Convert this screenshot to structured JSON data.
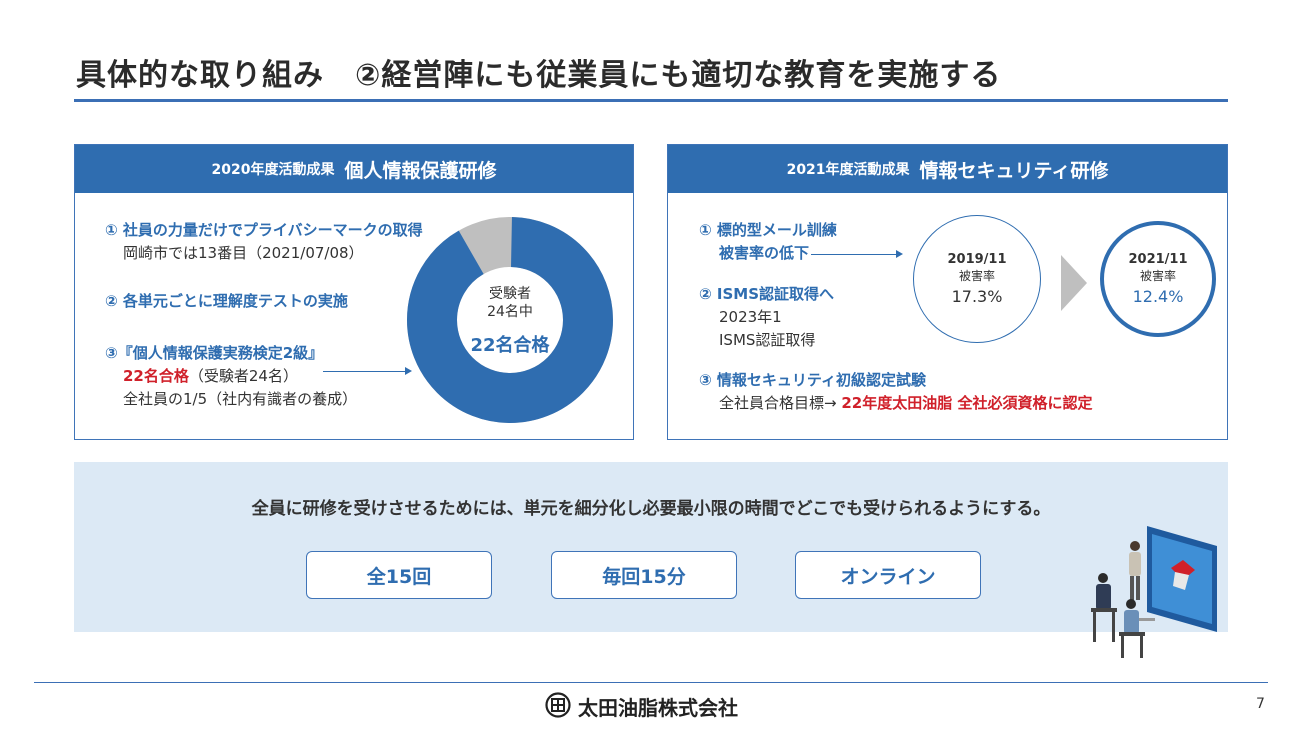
{
  "title": "具体的な取り組み　②経営陣にも従業員にも適切な教育を実施する",
  "left_panel": {
    "header_small": "2020年度活動成果",
    "header_big": "個人情報保護研修",
    "item1_title": "① 社員の力量だけでプライバシーマークの取得",
    "item1_sub": "岡崎市では13番目（2021/07/08）",
    "item2_title": "② 各単元ごとに理解度テストの実施",
    "item3_title": "③『個人情報保護実務検定2級』",
    "item3_red": "22名合格",
    "item3_red_note": "（受験者24名）",
    "item3_sub": "全社員の1/5（社内有識者の養成）",
    "donut_center_1": "受験者",
    "donut_center_2": "24名中",
    "donut_center_3": "22名合格"
  },
  "right_panel": {
    "header_small": "2021年度活動成果",
    "header_big": "情報セキュリティ研修",
    "item1_title": "① 標的型メール訓練",
    "item1_sub": "被害率の低下",
    "item2_title": "② ISMS認証取得へ",
    "item2_sub1": "2023年1",
    "item2_sub2": "ISMS認証取得",
    "item3_title": "③ 情報セキュリティ初級認定試験",
    "item3_sub": "全社員合格目標→",
    "item3_red": "22年度太田油脂 全社必須資格に認定",
    "circle1_date": "2019/11",
    "circle1_label": "被害率",
    "circle1_value": "17.3%",
    "circle2_date": "2021/11",
    "circle2_label": "被害率",
    "circle2_value": "12.4%"
  },
  "band": {
    "message": "全員に研修を受けさせるためには、単元を細分化し必要最小限の時間でどこでも受けられるようにする。",
    "pills": [
      "全15回",
      "毎回15分",
      "オンライン"
    ]
  },
  "exam_result": {
    "examinees": 24,
    "passed": 22
  },
  "footer": {
    "company": "太田油脂株式会社",
    "page_number": "7"
  },
  "colors": {
    "accent": "#2f6db0",
    "highlight_red": "#d0202a",
    "band_bg": "#dce9f5",
    "donut_gray": "#bfbfbf"
  }
}
